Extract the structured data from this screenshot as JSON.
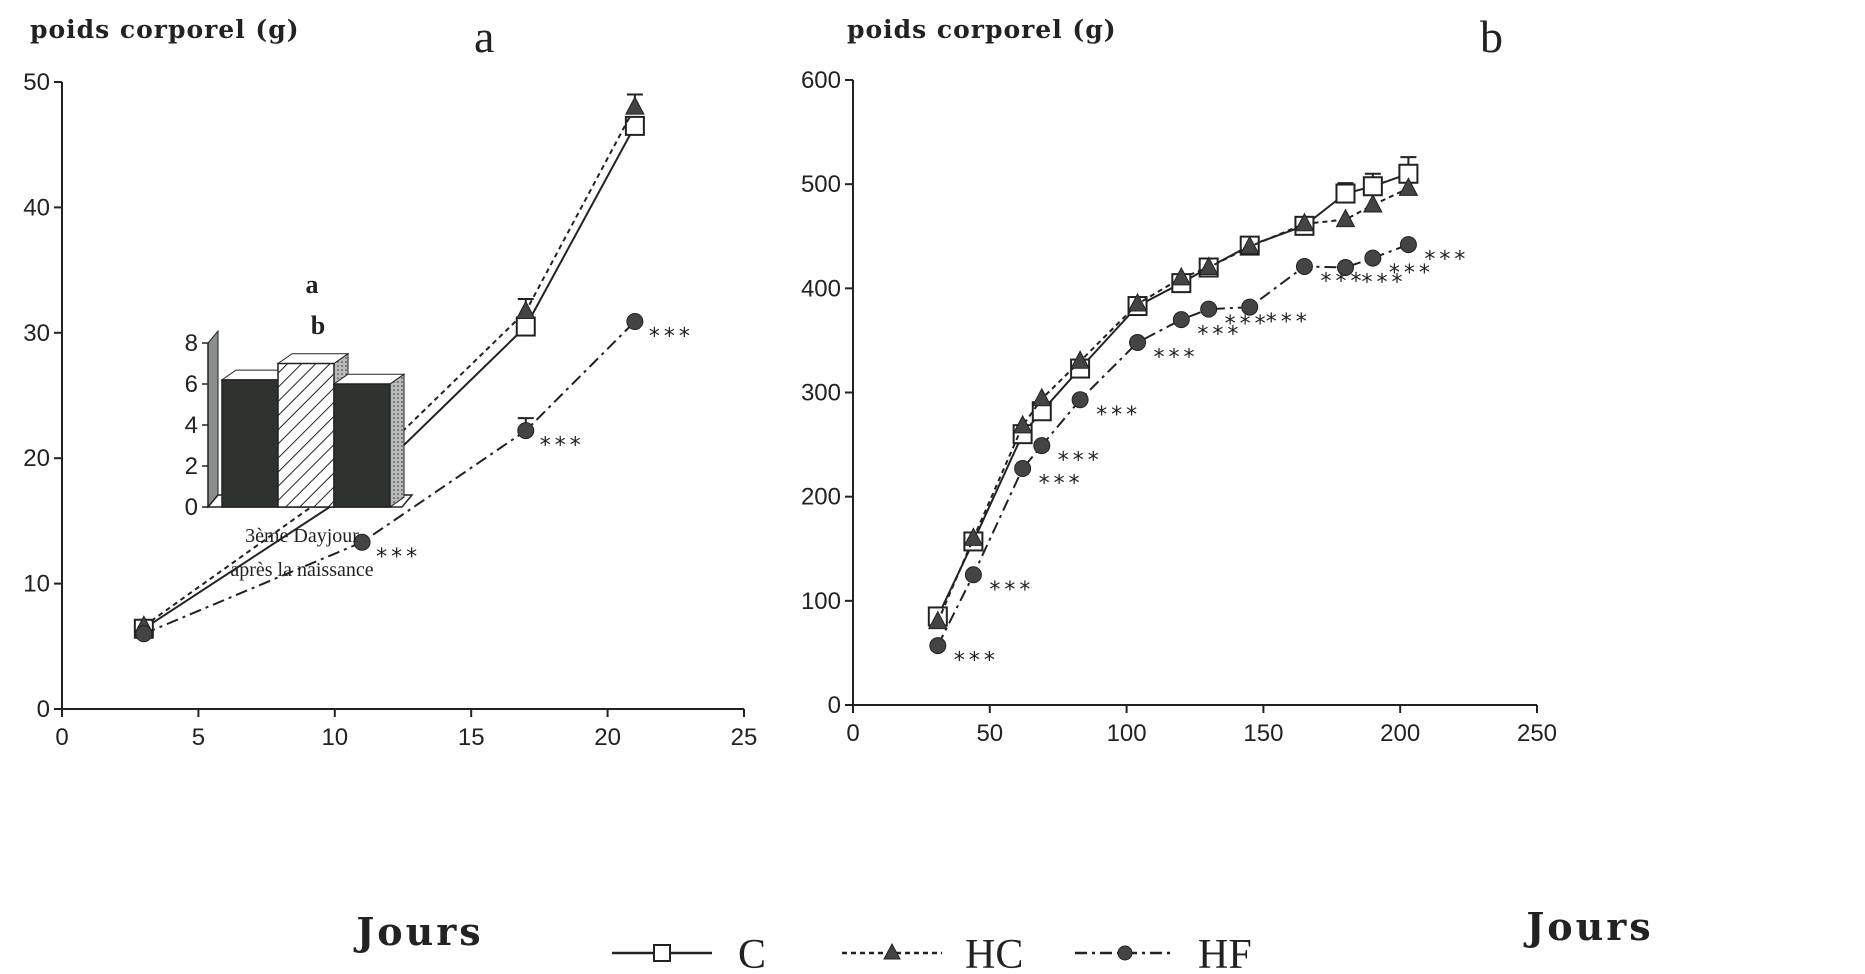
{
  "chart_data": [
    {
      "type": "line",
      "panel_label": "a",
      "ylabel": "poids corporel (g)",
      "xlabel": "Jours",
      "xlim": [
        0,
        25
      ],
      "ylim": [
        0,
        50
      ],
      "xticks": [
        "0",
        "5",
        "10",
        "15",
        "20",
        "25"
      ],
      "yticks": [
        "0",
        "10",
        "20",
        "30",
        "40",
        "50"
      ],
      "series": [
        {
          "name": "C",
          "x": [
            3,
            11,
            17,
            21
          ],
          "y": [
            6.4,
            17.8,
            30.5,
            46.5
          ],
          "err": [
            0,
            0,
            0,
            0
          ],
          "marker": "open-square",
          "dash": "solid"
        },
        {
          "name": "HC",
          "x": [
            3,
            11,
            17,
            21
          ],
          "y": [
            6.6,
            19.0,
            31.7,
            48.0
          ],
          "err": [
            0,
            0,
            1.0,
            1.0
          ],
          "marker": "filled-triangle",
          "dash": "dotted"
        },
        {
          "name": "HF",
          "x": [
            3,
            11,
            17,
            21
          ],
          "y": [
            6.0,
            13.3,
            22.2,
            30.9
          ],
          "err": [
            0,
            0,
            1.0,
            0
          ],
          "marker": "filled-circle",
          "dash": "dashdot"
        }
      ],
      "significance": [
        {
          "x": 11,
          "y": 13.3,
          "text": "***"
        },
        {
          "x": 17,
          "y": 22.2,
          "text": "***"
        },
        {
          "x": 21,
          "y": 30.9,
          "text": "***"
        }
      ],
      "inset": {
        "type": "bar",
        "ylim": [
          0,
          8
        ],
        "yticks": [
          "0",
          "2",
          "4",
          "6",
          "8"
        ],
        "series_values": [
          6.2,
          7.0,
          6.0
        ],
        "bar_patterns": [
          "dark",
          "hatched",
          "dark"
        ],
        "letters": [
          "a",
          "b"
        ],
        "xlabel_line1": "3ème Dayjour",
        "xlabel_line2": "après la naissance"
      }
    },
    {
      "type": "line",
      "panel_label": "b",
      "ylabel": "poids corporel (g)",
      "xlabel": "Jours",
      "xlim": [
        0,
        250
      ],
      "ylim": [
        0,
        600
      ],
      "xticks": [
        "0",
        "50",
        "100",
        "150",
        "200",
        "250"
      ],
      "yticks": [
        "0",
        "100",
        "200",
        "300",
        "400",
        "500",
        "600"
      ],
      "series": [
        {
          "name": "C",
          "x": [
            31,
            44,
            62,
            69,
            83,
            104,
            120,
            130,
            145,
            165,
            180,
            190,
            203
          ],
          "y": [
            85,
            157,
            260,
            282,
            323,
            383,
            405,
            420,
            441,
            460,
            491,
            498,
            510
          ],
          "err": [
            0,
            0,
            0,
            0,
            0,
            0,
            0,
            0,
            0,
            0,
            10,
            12,
            16
          ],
          "marker": "open-square",
          "dash": "solid"
        },
        {
          "name": "HC",
          "x": [
            31,
            44,
            62,
            69,
            83,
            104,
            120,
            130,
            145,
            165,
            180,
            190,
            203
          ],
          "y": [
            80,
            160,
            268,
            294,
            330,
            385,
            410,
            420,
            440,
            462,
            466,
            480,
            496
          ],
          "err": [
            0,
            0,
            0,
            0,
            0,
            0,
            0,
            0,
            0,
            0,
            0,
            0,
            0
          ],
          "marker": "filled-triangle",
          "dash": "dotted"
        },
        {
          "name": "HF",
          "x": [
            31,
            44,
            62,
            69,
            83,
            104,
            120,
            130,
            145,
            165,
            180,
            190,
            203
          ],
          "y": [
            57,
            125,
            227,
            249,
            293,
            348,
            370,
            380,
            382,
            421,
            420,
            429,
            442
          ],
          "err": [
            0,
            0,
            0,
            0,
            0,
            0,
            0,
            0,
            0,
            0,
            0,
            0,
            0
          ],
          "marker": "filled-circle",
          "dash": "dashdot"
        }
      ],
      "significance": [
        {
          "x": 31,
          "y": 57,
          "text": "***"
        },
        {
          "x": 44,
          "y": 125,
          "text": "***"
        },
        {
          "x": 62,
          "y": 227,
          "text": "***"
        },
        {
          "x": 69,
          "y": 249,
          "text": "***"
        },
        {
          "x": 83,
          "y": 293,
          "text": "***"
        },
        {
          "x": 104,
          "y": 348,
          "text": "***"
        },
        {
          "x": 120,
          "y": 370,
          "text": "***"
        },
        {
          "x": 130,
          "y": 380,
          "text": "***"
        },
        {
          "x": 145,
          "y": 382,
          "text": "***"
        },
        {
          "x": 165,
          "y": 421,
          "text": "***"
        },
        {
          "x": 180,
          "y": 420,
          "text": "***"
        },
        {
          "x": 190,
          "y": 429,
          "text": "***"
        },
        {
          "x": 203,
          "y": 442,
          "text": "***"
        }
      ]
    }
  ],
  "legend": [
    {
      "label": "C",
      "marker": "open-square",
      "dash": "solid"
    },
    {
      "label": "HC",
      "marker": "filled-triangle",
      "dash": "dotted"
    },
    {
      "label": "HF",
      "marker": "filled-circle",
      "dash": "dashdot"
    }
  ],
  "colors": {
    "line": "#222222",
    "marker_fill": "#444444",
    "bar_dark": "#2e3330",
    "bar_side": "#8a8f8b"
  }
}
